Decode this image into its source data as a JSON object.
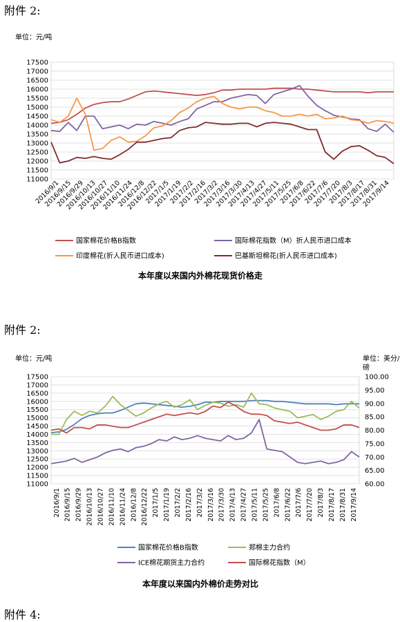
{
  "attachments": [
    "附件 2:",
    "附件 2:",
    "附件 4:"
  ],
  "chart_data": [
    {
      "type": "line",
      "title": "本年度以来国内外棉花现货价格走",
      "unit_label": "单位：元/吨",
      "ylim": [
        11000,
        17500
      ],
      "yticks": [
        "17500",
        "17000",
        "16500",
        "16000",
        "15500",
        "15000",
        "14500",
        "14000",
        "13500",
        "13000",
        "12500",
        "12000",
        "11500",
        "11000"
      ],
      "xticks": [
        "2016/9/1",
        "2016/9/15",
        "2016/9/29",
        "2016/10/13",
        "2016/10/27",
        "2016/11/10",
        "2016/11/24",
        "2016/12/8",
        "2016/12/22",
        "2017/1/5",
        "2017/1/19",
        "2017/2/2",
        "2017/2/16",
        "2017/3/2",
        "2017/3/16",
        "2017/3/30",
        "2017/4/13",
        "2017/4/27",
        "2017/5/11",
        "2017/5/25",
        "2017/6/8",
        "2017/6/22",
        "2017/7/6",
        "2017/7/20",
        "2017/8/3",
        "2017/8/17",
        "2017/8/31",
        "2017/9/14"
      ],
      "grid": true,
      "legend_position": "bottom",
      "series": [
        {
          "name": "国家棉花价格B指数",
          "color": "#C0504D",
          "values": [
            14100,
            14150,
            14300,
            14600,
            14950,
            15150,
            15250,
            15300,
            15300,
            15450,
            15650,
            15850,
            15900,
            15850,
            15800,
            15750,
            15700,
            15650,
            15700,
            15800,
            15950,
            15950,
            16000,
            16000,
            16000,
            16000,
            16050,
            16050,
            16050,
            16000,
            16000,
            15950,
            15900,
            15850,
            15850,
            15850,
            15850,
            15800,
            15850,
            15850,
            15850
          ]
        },
        {
          "name": "国际棉花指数（M）折人民币进口成本",
          "color": "#8064A2",
          "values": [
            13700,
            13650,
            14150,
            13700,
            14500,
            14500,
            13800,
            13900,
            14000,
            13800,
            14050,
            14000,
            14200,
            14100,
            14000,
            14200,
            14350,
            14900,
            15100,
            15300,
            15300,
            15500,
            15600,
            15700,
            15650,
            15200,
            15700,
            15850,
            16000,
            16200,
            15600,
            15100,
            14800,
            14550,
            14450,
            14350,
            14300,
            13800,
            13650,
            14050,
            13600
          ]
        },
        {
          "name": "印度棉花(折人民币进口成本)",
          "color": "#F79646",
          "values": [
            14300,
            14150,
            14500,
            15500,
            14600,
            12600,
            12700,
            13150,
            13350,
            13050,
            13100,
            13400,
            13850,
            13950,
            14250,
            14700,
            14950,
            15300,
            15500,
            15600,
            15200,
            15000,
            14900,
            15000,
            15000,
            14800,
            14700,
            14500,
            14500,
            14600,
            14500,
            14600,
            14350,
            14400,
            14500,
            14300,
            14250,
            14100,
            14250,
            14200,
            14100
          ]
        },
        {
          "name": "巴基斯坦棉花(折人民币进口成本)",
          "color": "#7F2C2C",
          "values": [
            13050,
            11900,
            12000,
            12200,
            12150,
            12250,
            12150,
            12100,
            12350,
            12650,
            13050,
            13050,
            13150,
            13250,
            13300,
            13700,
            13850,
            13900,
            14150,
            14100,
            14050,
            14050,
            14100,
            14100,
            13900,
            14100,
            14150,
            14100,
            14050,
            13900,
            13750,
            13750,
            12500,
            12100,
            12550,
            12800,
            12850,
            12600,
            12300,
            12200,
            11850
          ]
        }
      ]
    },
    {
      "type": "line",
      "title": "本年度以来国内外棉价走势对比",
      "unit_label": "单位：元/吨",
      "unit_label_right": [
        "单位：美分/",
        "磅"
      ],
      "ylim": [
        11000,
        17500
      ],
      "ylim_right": [
        60,
        100
      ],
      "yticks": [
        "17500",
        "17000",
        "16500",
        "16000",
        "15500",
        "15000",
        "14500",
        "14000",
        "13500",
        "13000",
        "12500",
        "12000",
        "11500",
        "11000"
      ],
      "yticks_right": [
        "100.00",
        "95.00",
        "90.00",
        "85.00",
        "80.00",
        "75.00",
        "70.00",
        "65.00",
        "60.00"
      ],
      "xticks": [
        "2016/9/1",
        "2016/9/15",
        "2016/9/29",
        "2016/10/13",
        "2016/10/27",
        "2016/11/10",
        "2016/11/24",
        "2016/12/8",
        "2016/12/22",
        "2017/1/5",
        "2017/1/19",
        "2017/2/2",
        "2017/2/16",
        "2017/3/2",
        "2017/3/16",
        "2017/3/30",
        "2017/4/13",
        "2017/4/27",
        "2017/5/11",
        "2017/5/25",
        "2017/6/8",
        "2017/6/22",
        "2017/7/6",
        "2017/7/20",
        "2017/8/3",
        "2017/8/17",
        "2017/8/31",
        "2017/9/14"
      ],
      "grid": true,
      "legend_position": "bottom",
      "series": [
        {
          "name": "国家棉花价格B指数",
          "color": "#4F81BD",
          "axis": "left",
          "values": [
            14100,
            14150,
            14300,
            14600,
            14950,
            15150,
            15250,
            15300,
            15300,
            15450,
            15650,
            15850,
            15900,
            15850,
            15800,
            15750,
            15700,
            15650,
            15700,
            15800,
            15950,
            15950,
            16000,
            16000,
            16000,
            16000,
            16050,
            16050,
            16050,
            16000,
            16000,
            15950,
            15900,
            15850,
            15850,
            15850,
            15850,
            15800,
            15850,
            15850,
            15850
          ]
        },
        {
          "name": "郑棉主力合约",
          "color": "#9BBB59",
          "axis": "left",
          "values": [
            14000,
            14000,
            14900,
            15400,
            15150,
            15400,
            15300,
            15700,
            16300,
            15800,
            15450,
            15100,
            15300,
            15600,
            15850,
            16000,
            15650,
            15800,
            16100,
            15500,
            15750,
            15950,
            15900,
            15700,
            15800,
            15650,
            16500,
            15850,
            15800,
            15600,
            15500,
            15400,
            15000,
            15100,
            15200,
            14900,
            15100,
            15400,
            15500,
            16000,
            15600
          ]
        },
        {
          "name": "ICE棉花期货主力合约",
          "color": "#8064A2",
          "axis": "right",
          "values": [
            67.5,
            68,
            68.5,
            69.5,
            68,
            69,
            70,
            71.5,
            72.5,
            73,
            72,
            73.5,
            74,
            75,
            76.5,
            76,
            77.5,
            76.5,
            77,
            78,
            77,
            76.5,
            76,
            78,
            76.5,
            77,
            79,
            84,
            73,
            72.5,
            72,
            70,
            68,
            67.5,
            68,
            68.5,
            67.5,
            68,
            69,
            72,
            70
          ]
        },
        {
          "name": "国际棉花指数（M）",
          "color": "#C0504D",
          "axis": "right",
          "values": [
            80,
            80.5,
            79,
            81,
            81,
            80.5,
            82,
            82,
            81.5,
            81,
            81,
            82,
            83,
            84,
            85,
            86,
            85.5,
            86,
            86.5,
            86,
            87,
            89,
            88.5,
            90.5,
            89,
            87,
            86,
            86,
            85.5,
            83.5,
            83,
            82.5,
            83,
            82,
            81,
            80,
            80,
            80.5,
            82,
            82,
            81
          ]
        }
      ]
    }
  ]
}
